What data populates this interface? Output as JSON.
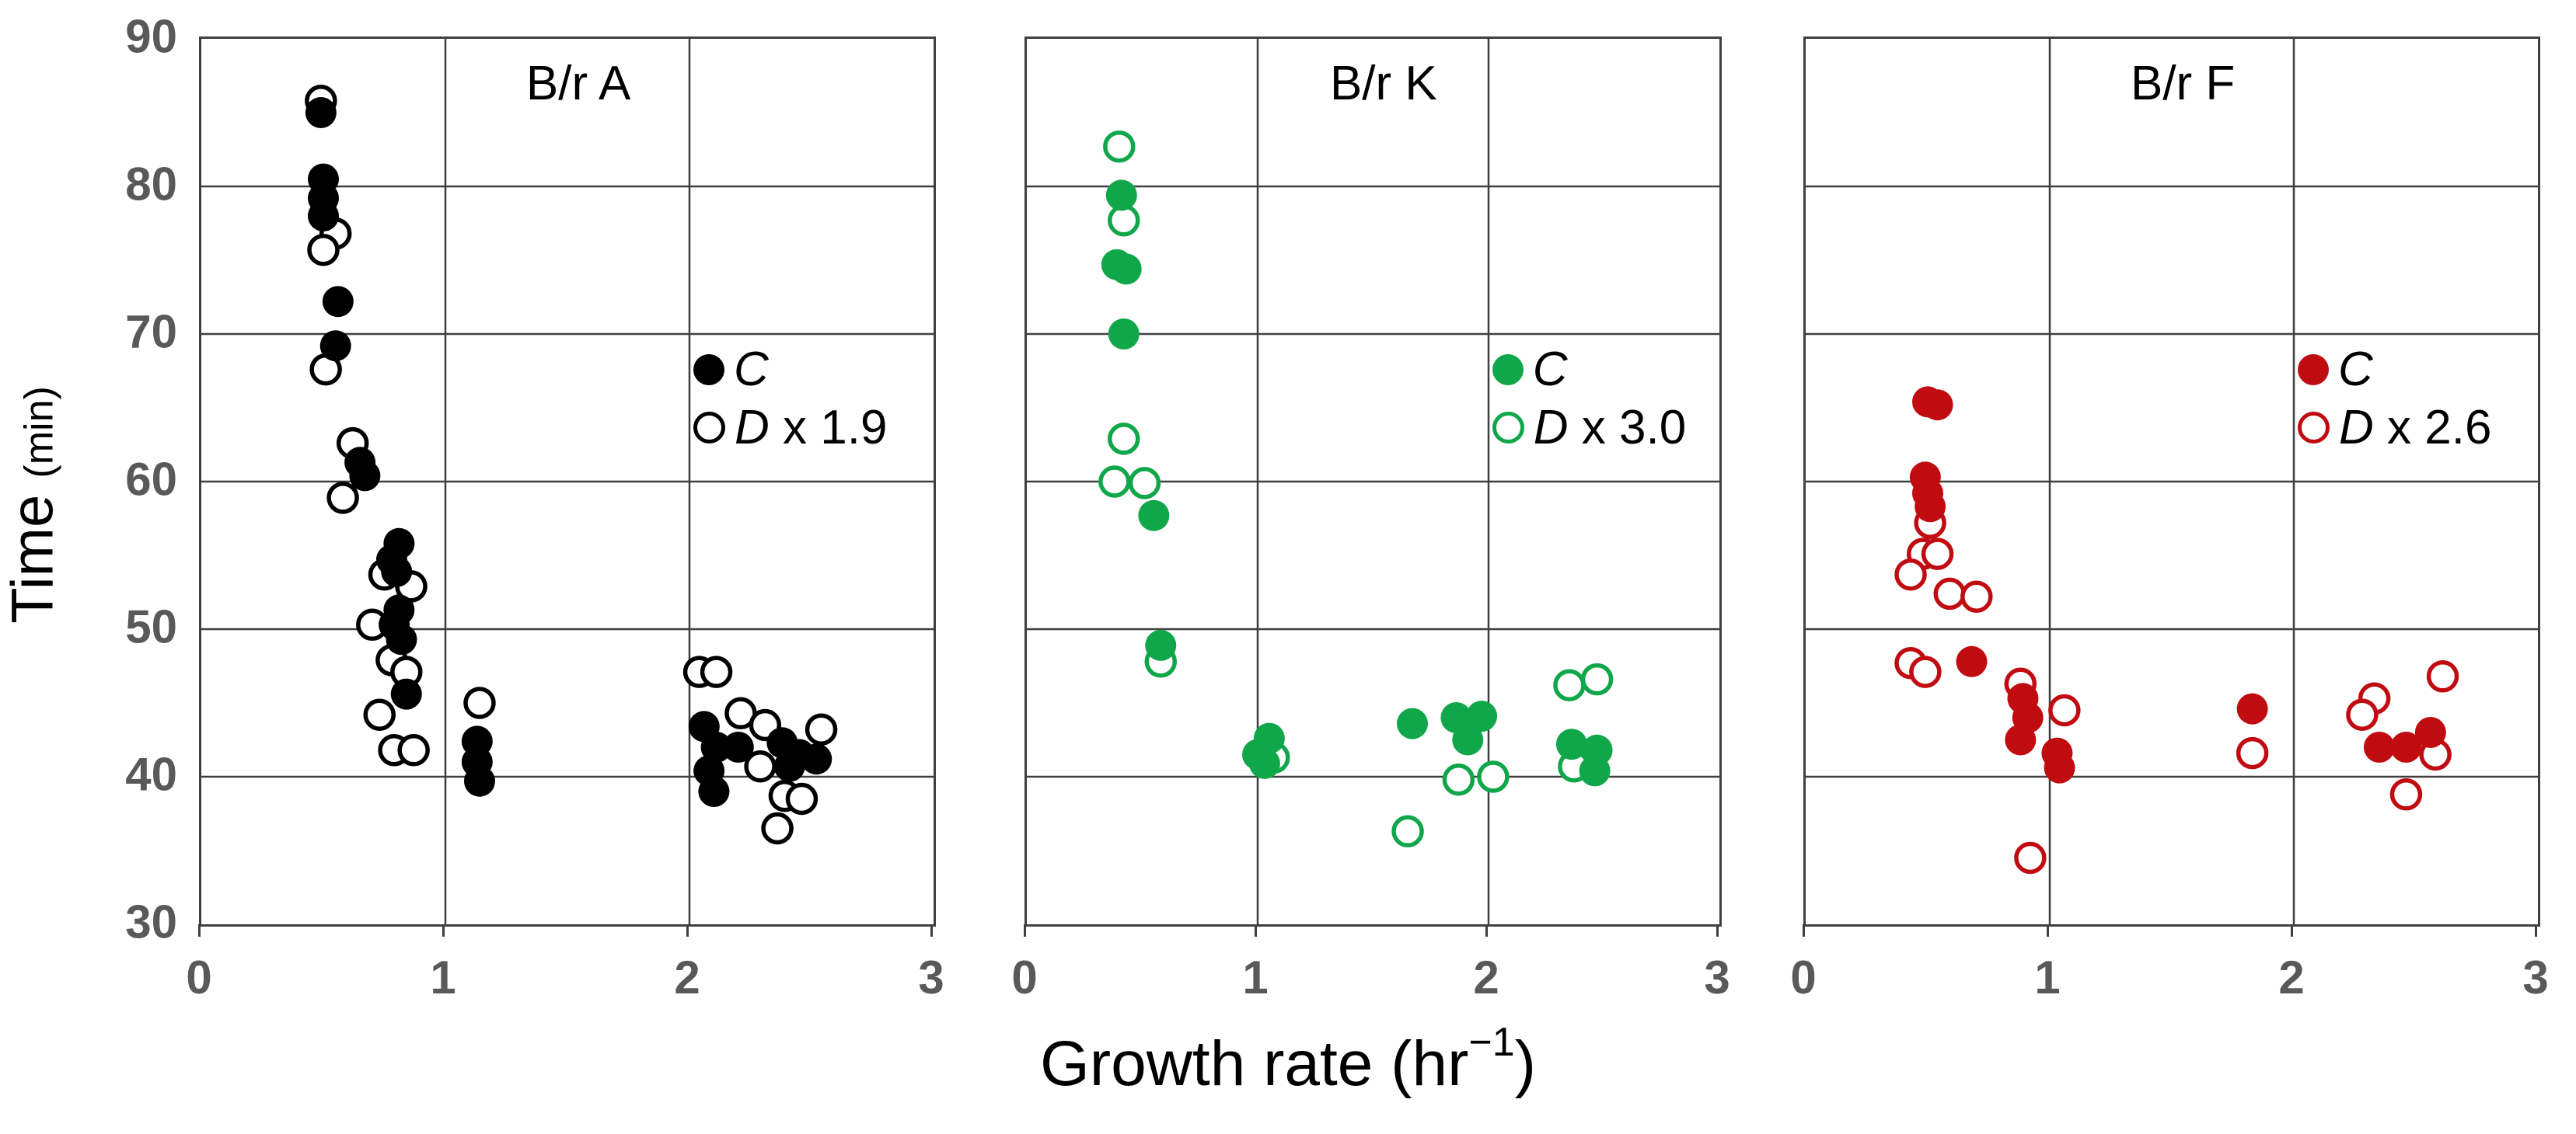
{
  "figure": {
    "ylabel_main": "Time",
    "ylabel_unit": "(min)",
    "xlabel_prefix": "Growth rate (hr",
    "xlabel_sup": "−1",
    "xlabel_suffix": ")"
  },
  "axes": {
    "y_ticks": [
      90,
      80,
      70,
      60,
      50,
      40,
      30
    ],
    "x_ticks": [
      0,
      1,
      2,
      3
    ],
    "ylim": [
      30,
      90
    ],
    "xlim": [
      0,
      3
    ],
    "grid": true,
    "grid_color": "#3f3f3f",
    "tick_label_color": "#595959"
  },
  "chart_data": [
    {
      "type": "scatter",
      "title": "B/r A",
      "color": "#000000",
      "xlim": [
        0,
        3
      ],
      "ylim": [
        30,
        90
      ],
      "legend_position": "inside-right",
      "series": [
        {
          "name": "C",
          "marker": "filled",
          "legend_symbol": "C",
          "legend_suffix": "",
          "points": [
            [
              0.49,
              85.0
            ],
            [
              0.5,
              80.5
            ],
            [
              0.5,
              79.2
            ],
            [
              0.5,
              78.0
            ],
            [
              0.56,
              72.2
            ],
            [
              0.55,
              69.2
            ],
            [
              0.65,
              61.3
            ],
            [
              0.67,
              60.4
            ],
            [
              0.81,
              55.8
            ],
            [
              0.78,
              54.7
            ],
            [
              0.8,
              53.9
            ],
            [
              0.81,
              51.3
            ],
            [
              0.79,
              50.3
            ],
            [
              0.82,
              49.3
            ],
            [
              0.84,
              45.6
            ],
            [
              1.13,
              42.4
            ],
            [
              1.13,
              41.0
            ],
            [
              1.14,
              39.7
            ],
            [
              2.06,
              43.4
            ],
            [
              2.11,
              42.0
            ],
            [
              2.2,
              42.0
            ],
            [
              2.08,
              40.4
            ],
            [
              2.1,
              39.0
            ],
            [
              2.38,
              42.3
            ],
            [
              2.45,
              41.5
            ],
            [
              2.52,
              41.2
            ],
            [
              2.41,
              40.7
            ]
          ]
        },
        {
          "name": "D x 1.9",
          "marker": "open",
          "legend_symbol": "D",
          "legend_suffix": " x 1.9",
          "points": [
            [
              0.49,
              85.8
            ],
            [
              0.55,
              76.8
            ],
            [
              0.5,
              75.7
            ],
            [
              0.51,
              67.6
            ],
            [
              0.62,
              62.6
            ],
            [
              0.58,
              58.9
            ],
            [
              0.75,
              53.7
            ],
            [
              0.86,
              52.9
            ],
            [
              0.7,
              50.3
            ],
            [
              0.78,
              47.9
            ],
            [
              0.84,
              47.1
            ],
            [
              0.73,
              44.2
            ],
            [
              0.79,
              41.8
            ],
            [
              0.87,
              41.8
            ],
            [
              1.14,
              45.0
            ],
            [
              2.04,
              47.1
            ],
            [
              2.11,
              47.1
            ],
            [
              2.21,
              44.3
            ],
            [
              2.31,
              43.5
            ],
            [
              2.54,
              43.2
            ],
            [
              2.29,
              40.7
            ],
            [
              2.39,
              38.7
            ],
            [
              2.46,
              38.5
            ],
            [
              2.36,
              36.5
            ]
          ]
        }
      ]
    },
    {
      "type": "scatter",
      "title": "B/r K",
      "color": "#10a64a",
      "xlim": [
        0,
        3
      ],
      "ylim": [
        30,
        90
      ],
      "legend_position": "inside-right",
      "series": [
        {
          "name": "C",
          "marker": "filled",
          "legend_symbol": "C",
          "legend_suffix": "",
          "points": [
            [
              0.41,
              79.4
            ],
            [
              0.39,
              74.7
            ],
            [
              0.43,
              74.4
            ],
            [
              0.42,
              70.0
            ],
            [
              0.55,
              57.7
            ],
            [
              0.58,
              48.9
            ],
            [
              1.0,
              41.5
            ],
            [
              1.03,
              40.9
            ],
            [
              1.05,
              42.6
            ],
            [
              1.67,
              43.6
            ],
            [
              1.86,
              44.0
            ],
            [
              1.91,
              42.5
            ],
            [
              1.97,
              44.1
            ],
            [
              2.36,
              42.2
            ],
            [
              2.47,
              41.8
            ],
            [
              2.46,
              40.4
            ]
          ]
        },
        {
          "name": "D x 3.0",
          "marker": "open",
          "legend_symbol": "D",
          "legend_suffix": " x 3.0",
          "points": [
            [
              0.4,
              82.7
            ],
            [
              0.42,
              77.7
            ],
            [
              0.42,
              62.9
            ],
            [
              0.38,
              60.0
            ],
            [
              0.51,
              59.9
            ],
            [
              0.58,
              47.8
            ],
            [
              1.07,
              41.3
            ],
            [
              1.65,
              36.3
            ],
            [
              1.87,
              39.8
            ],
            [
              2.02,
              40.0
            ],
            [
              2.35,
              46.2
            ],
            [
              2.47,
              46.6
            ],
            [
              2.37,
              40.7
            ]
          ]
        }
      ]
    },
    {
      "type": "scatter",
      "title": "B/r F",
      "color": "#c00c11",
      "xlim": [
        0,
        3
      ],
      "ylim": [
        30,
        90
      ],
      "legend_position": "inside-right",
      "series": [
        {
          "name": "C",
          "marker": "filled",
          "legend_symbol": "C",
          "legend_suffix": "",
          "points": [
            [
              0.5,
              65.4
            ],
            [
              0.54,
              65.2
            ],
            [
              0.49,
              60.3
            ],
            [
              0.5,
              59.2
            ],
            [
              0.51,
              58.3
            ],
            [
              0.68,
              47.8
            ],
            [
              0.89,
              45.3
            ],
            [
              0.91,
              44.0
            ],
            [
              0.88,
              42.5
            ],
            [
              1.03,
              41.6
            ],
            [
              1.04,
              40.6
            ],
            [
              1.83,
              44.6
            ],
            [
              2.35,
              42.0
            ],
            [
              2.46,
              42.0
            ],
            [
              2.56,
              43.0
            ]
          ]
        },
        {
          "name": "D x 2.6",
          "marker": "open",
          "legend_symbol": "D",
          "legend_suffix": " x 2.6",
          "points": [
            [
              0.51,
              57.2
            ],
            [
              0.48,
              55.1
            ],
            [
              0.54,
              55.1
            ],
            [
              0.43,
              53.7
            ],
            [
              0.59,
              52.4
            ],
            [
              0.7,
              52.2
            ],
            [
              0.43,
              47.7
            ],
            [
              0.49,
              47.1
            ],
            [
              0.88,
              46.3
            ],
            [
              1.06,
              44.5
            ],
            [
              0.92,
              34.5
            ],
            [
              1.83,
              41.6
            ],
            [
              2.33,
              45.3
            ],
            [
              2.28,
              44.2
            ],
            [
              2.61,
              46.8
            ],
            [
              2.58,
              41.5
            ],
            [
              2.46,
              38.8
            ]
          ]
        }
      ]
    }
  ]
}
